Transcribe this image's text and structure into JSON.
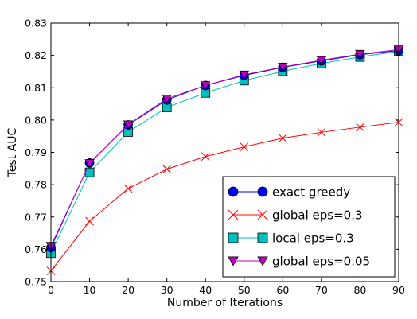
{
  "chart_data": {
    "type": "line",
    "xlabel": "Number of Iterations",
    "ylabel": "Test AUC",
    "xlim": [
      0,
      90
    ],
    "ylim": [
      0.75,
      0.83
    ],
    "xticks": [
      "0",
      "10",
      "20",
      "30",
      "40",
      "50",
      "60",
      "70",
      "80",
      "90"
    ],
    "yticks": [
      "0.75",
      "0.76",
      "0.77",
      "0.78",
      "0.79",
      "0.80",
      "0.81",
      "0.82",
      "0.83"
    ],
    "grid": false,
    "legend_position": "lower-right",
    "x": [
      0,
      10,
      20,
      30,
      40,
      50,
      60,
      70,
      80,
      90
    ],
    "series": [
      {
        "name": "exact greedy",
        "marker": "circle",
        "color": "#0000ff",
        "values": [
          0.7605,
          0.7867,
          0.7985,
          0.8062,
          0.8107,
          0.8138,
          0.8163,
          0.8183,
          0.8202,
          0.8215
        ]
      },
      {
        "name": "global eps=0.3",
        "marker": "x",
        "color": "#ff0000",
        "values": [
          0.7533,
          0.7687,
          0.7788,
          0.7848,
          0.7887,
          0.7917,
          0.7944,
          0.7962,
          0.7978,
          0.7993
        ]
      },
      {
        "name": "local eps=0.3",
        "marker": "square",
        "color": "#00bfbf",
        "values": [
          0.7588,
          0.7838,
          0.7963,
          0.8039,
          0.8084,
          0.8122,
          0.8151,
          0.8175,
          0.8195,
          0.8213
        ]
      },
      {
        "name": "global eps=0.05",
        "marker": "triangle-down",
        "color": "#bf00bf",
        "values": [
          0.761,
          0.7866,
          0.7986,
          0.8066,
          0.8107,
          0.814,
          0.8164,
          0.8185,
          0.8204,
          0.8218
        ]
      }
    ]
  }
}
